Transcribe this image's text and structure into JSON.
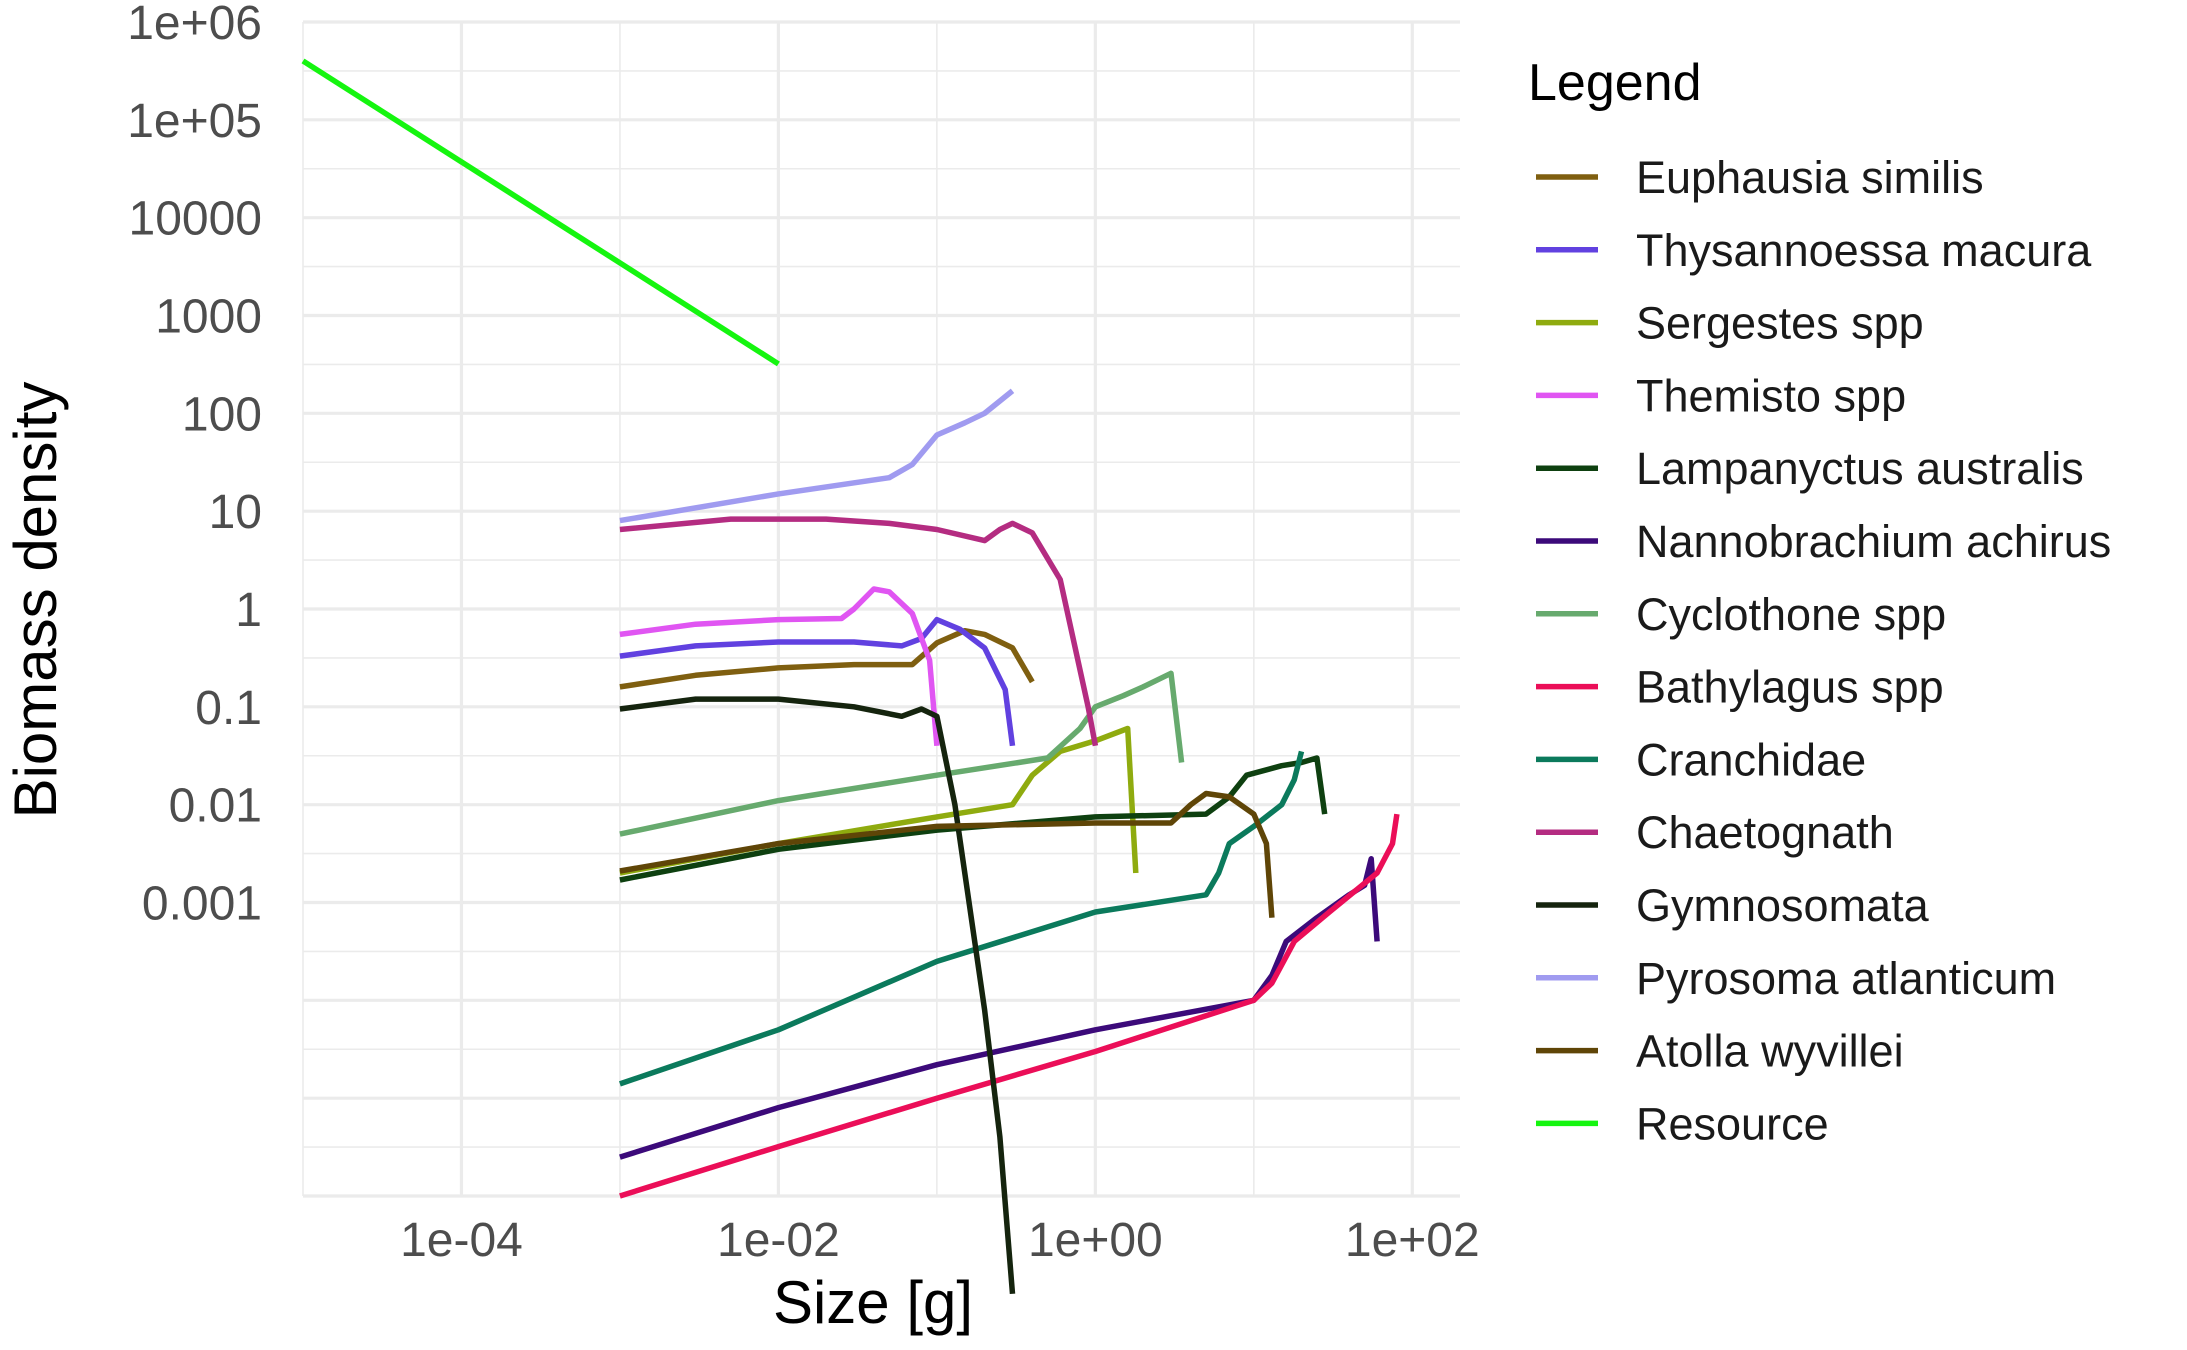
{
  "chart_data": {
    "type": "line",
    "xlabel": "Size [g]",
    "ylabel": "Biomass density",
    "x_scale": "log10",
    "y_scale": "log10",
    "xlim": [
      1e-05,
      200
    ],
    "ylim": [
      1e-06,
      1000000.0
    ],
    "grid": true,
    "legend_title": "Legend",
    "legend_position": "right",
    "x_ticks": [
      {
        "value": 0.0001,
        "label": "1e-04"
      },
      {
        "value": 0.01,
        "label": "1e-02"
      },
      {
        "value": 1,
        "label": "1e+00"
      },
      {
        "value": 100,
        "label": "1e+02"
      }
    ],
    "y_ticks": [
      {
        "value": 1000000.0,
        "label": "1e+06"
      },
      {
        "value": 100000.0,
        "label": "1e+05"
      },
      {
        "value": 10000.0,
        "label": "10000"
      },
      {
        "value": 1000,
        "label": "1000"
      },
      {
        "value": 100,
        "label": "100"
      },
      {
        "value": 10,
        "label": "10"
      },
      {
        "value": 1,
        "label": "1"
      },
      {
        "value": 0.1,
        "label": "0.1"
      },
      {
        "value": 0.01,
        "label": "0.01"
      },
      {
        "value": 0.001,
        "label": "0.001"
      }
    ],
    "series": [
      {
        "name": "Euphausia similis",
        "color": "#7f5f10",
        "points": [
          [
            0.001,
            0.16
          ],
          [
            0.003,
            0.21
          ],
          [
            0.01,
            0.25
          ],
          [
            0.03,
            0.27
          ],
          [
            0.07,
            0.27
          ],
          [
            0.1,
            0.45
          ],
          [
            0.15,
            0.6
          ],
          [
            0.2,
            0.55
          ],
          [
            0.3,
            0.4
          ],
          [
            0.4,
            0.18
          ]
        ]
      },
      {
        "name": "Thysannoessa macura",
        "color": "#6141e0",
        "points": [
          [
            0.001,
            0.33
          ],
          [
            0.003,
            0.42
          ],
          [
            0.01,
            0.46
          ],
          [
            0.03,
            0.46
          ],
          [
            0.06,
            0.42
          ],
          [
            0.08,
            0.5
          ],
          [
            0.1,
            0.78
          ],
          [
            0.14,
            0.62
          ],
          [
            0.2,
            0.4
          ],
          [
            0.27,
            0.15
          ],
          [
            0.3,
            0.04
          ]
        ]
      },
      {
        "name": "Sergestes spp",
        "color": "#8fab0f",
        "points": [
          [
            0.001,
            0.002
          ],
          [
            0.01,
            0.004
          ],
          [
            0.1,
            0.0075
          ],
          [
            0.3,
            0.01
          ],
          [
            0.4,
            0.02
          ],
          [
            0.6,
            0.035
          ],
          [
            1,
            0.045
          ],
          [
            1.6,
            0.06
          ],
          [
            1.8,
            0.002
          ]
        ]
      },
      {
        "name": "Themisto spp",
        "color": "#e055f2",
        "points": [
          [
            0.001,
            0.55
          ],
          [
            0.003,
            0.7
          ],
          [
            0.01,
            0.78
          ],
          [
            0.025,
            0.8
          ],
          [
            0.03,
            1.0
          ],
          [
            0.04,
            1.6
          ],
          [
            0.05,
            1.5
          ],
          [
            0.07,
            0.9
          ],
          [
            0.09,
            0.3
          ],
          [
            0.1,
            0.04
          ]
        ]
      },
      {
        "name": "Lampanyctus australis",
        "color": "#0e4010",
        "points": [
          [
            0.001,
            0.0017
          ],
          [
            0.01,
            0.0035
          ],
          [
            0.1,
            0.0055
          ],
          [
            1,
            0.0075
          ],
          [
            5,
            0.008
          ],
          [
            7,
            0.012
          ],
          [
            9,
            0.02
          ],
          [
            15,
            0.025
          ],
          [
            20,
            0.027
          ],
          [
            25,
            0.03
          ],
          [
            28,
            0.008
          ]
        ]
      },
      {
        "name": "Nannobrachium achirus",
        "color": "#3c0a7a",
        "points": [
          [
            0.001,
            2.5e-06
          ],
          [
            0.01,
            8e-06
          ],
          [
            0.1,
            2.2e-05
          ],
          [
            1,
            5e-05
          ],
          [
            10,
            0.0001
          ],
          [
            13,
            0.00018
          ],
          [
            16,
            0.0004
          ],
          [
            25,
            0.0007
          ],
          [
            40,
            0.0012
          ],
          [
            50,
            0.0015
          ],
          [
            55,
            0.0028
          ],
          [
            60,
            0.0004
          ]
        ]
      },
      {
        "name": "Cyclothone spp",
        "color": "#67aa6e",
        "points": [
          [
            0.001,
            0.005
          ],
          [
            0.01,
            0.011
          ],
          [
            0.1,
            0.02
          ],
          [
            0.5,
            0.03
          ],
          [
            0.8,
            0.06
          ],
          [
            1,
            0.1
          ],
          [
            1.5,
            0.13
          ],
          [
            2,
            0.16
          ],
          [
            3,
            0.22
          ],
          [
            3.5,
            0.027
          ]
        ]
      },
      {
        "name": "Bathylagus spp",
        "color": "#eb0e58",
        "points": [
          [
            0.001,
            1e-06
          ],
          [
            0.01,
            3.2e-06
          ],
          [
            0.1,
            1e-05
          ],
          [
            1,
            3e-05
          ],
          [
            10,
            0.0001
          ],
          [
            13,
            0.00015
          ],
          [
            18,
            0.0004
          ],
          [
            30,
            0.0008
          ],
          [
            60,
            0.002
          ],
          [
            75,
            0.004
          ],
          [
            80,
            0.008
          ]
        ]
      },
      {
        "name": "Cranchidae",
        "color": "#0b7a5c",
        "points": [
          [
            0.001,
            1.4e-05
          ],
          [
            0.01,
            5e-05
          ],
          [
            0.1,
            0.00025
          ],
          [
            1,
            0.0008
          ],
          [
            5,
            0.0012
          ],
          [
            6,
            0.002
          ],
          [
            7,
            0.004
          ],
          [
            10,
            0.006
          ],
          [
            15,
            0.01
          ],
          [
            18,
            0.018
          ],
          [
            20,
            0.035
          ]
        ]
      },
      {
        "name": "Chaetognath",
        "color": "#b42c81",
        "points": [
          [
            0.001,
            6.5
          ],
          [
            0.005,
            8.3
          ],
          [
            0.02,
            8.3
          ],
          [
            0.05,
            7.5
          ],
          [
            0.1,
            6.5
          ],
          [
            0.2,
            5
          ],
          [
            0.25,
            6.5
          ],
          [
            0.3,
            7.5
          ],
          [
            0.4,
            6
          ],
          [
            0.6,
            2
          ],
          [
            0.9,
            0.1
          ],
          [
            1,
            0.04
          ]
        ]
      },
      {
        "name": "Gymnosomata",
        "color": "#15240e",
        "points": [
          [
            0.001,
            0.095
          ],
          [
            0.003,
            0.12
          ],
          [
            0.01,
            0.12
          ],
          [
            0.03,
            0.1
          ],
          [
            0.06,
            0.08
          ],
          [
            0.08,
            0.095
          ],
          [
            0.1,
            0.08
          ],
          [
            0.13,
            0.01
          ],
          [
            0.2,
            8e-05
          ],
          [
            0.25,
            4e-06
          ],
          [
            0.3,
            1e-07
          ]
        ]
      },
      {
        "name": "Pyrosoma atlanticum",
        "color": "#a09bf0",
        "points": [
          [
            0.001,
            8
          ],
          [
            0.01,
            15
          ],
          [
            0.05,
            22
          ],
          [
            0.07,
            30
          ],
          [
            0.1,
            60
          ],
          [
            0.15,
            80
          ],
          [
            0.2,
            100
          ],
          [
            0.3,
            170
          ]
        ]
      },
      {
        "name": "Atolla wyvillei",
        "color": "#5f4507",
        "points": [
          [
            0.001,
            0.0021
          ],
          [
            0.01,
            0.004
          ],
          [
            0.1,
            0.006
          ],
          [
            1,
            0.0065
          ],
          [
            3,
            0.0065
          ],
          [
            4,
            0.01
          ],
          [
            5,
            0.013
          ],
          [
            7,
            0.012
          ],
          [
            10,
            0.008
          ],
          [
            12,
            0.004
          ],
          [
            13,
            0.0007
          ]
        ]
      },
      {
        "name": "Resource",
        "color": "#15f50f",
        "points": [
          [
            1e-05,
            400000
          ],
          [
            0.01,
            320
          ]
        ]
      }
    ]
  }
}
